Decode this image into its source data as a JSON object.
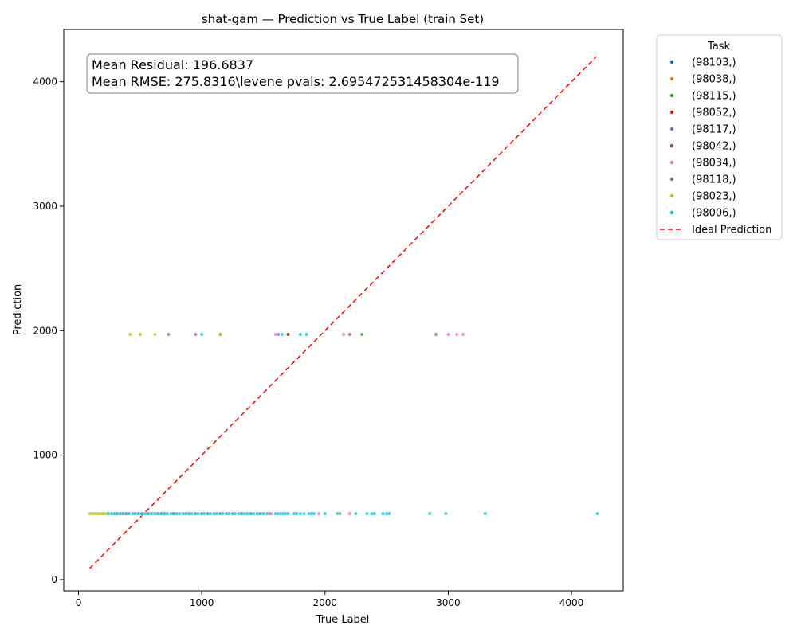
{
  "chart_data": {
    "type": "scatter",
    "title": "shat-gam — Prediction vs True Label (train Set)",
    "xlabel": "True Label",
    "ylabel": "Prediction",
    "xlim": [
      -120,
      4420
    ],
    "ylim": [
      -90,
      4420
    ],
    "xticks": [
      0,
      1000,
      2000,
      3000,
      4000
    ],
    "yticks": [
      0,
      1000,
      2000,
      3000,
      4000
    ],
    "grid": false,
    "legend": {
      "title": "Task",
      "placement": "outside-top-right"
    },
    "annotation": [
      "Mean Residual: 196.6837",
      "Mean RMSE: 275.8316\\levene pvals: 2.695472531458304e-119"
    ],
    "ideal_line": {
      "name": "Ideal Prediction",
      "x": [
        90,
        4200
      ],
      "y": [
        90,
        4200
      ],
      "color": "#ff0000",
      "style": "dashed"
    },
    "series": [
      {
        "name": "(98103,)",
        "color": "#1f77b4",
        "points": [
          [
            250,
            530
          ],
          [
            300,
            530
          ],
          [
            400,
            530
          ],
          [
            520,
            530
          ],
          [
            640,
            530
          ],
          [
            760,
            530
          ],
          [
            900,
            530
          ],
          [
            1050,
            530
          ],
          [
            1200,
            530
          ],
          [
            1330,
            530
          ],
          [
            1450,
            530
          ]
        ]
      },
      {
        "name": "(98038,)",
        "color": "#ff7f0e",
        "points": [
          [
            1150,
            1970
          ],
          [
            200,
            530
          ],
          [
            350,
            530
          ],
          [
            600,
            530
          ],
          [
            850,
            530
          ]
        ]
      },
      {
        "name": "(98115,)",
        "color": "#2ca02c",
        "points": [
          [
            2300,
            1970
          ],
          [
            1700,
            1970
          ],
          [
            450,
            530
          ],
          [
            700,
            530
          ],
          [
            1000,
            530
          ],
          [
            1400,
            530
          ]
        ]
      },
      {
        "name": "(98052,)",
        "color": "#d62728",
        "points": [
          [
            2200,
            1970
          ],
          [
            1700,
            1970
          ],
          [
            380,
            530
          ],
          [
            780,
            530
          ],
          [
            1150,
            530
          ]
        ]
      },
      {
        "name": "(98117,)",
        "color": "#9467bd",
        "points": [
          [
            950,
            1970
          ],
          [
            1620,
            1970
          ],
          [
            480,
            530
          ],
          [
            880,
            530
          ],
          [
            1250,
            530
          ]
        ]
      },
      {
        "name": "(98042,)",
        "color": "#8c564b",
        "points": [
          [
            1150,
            1970
          ],
          [
            1700,
            1970
          ],
          [
            2200,
            1970
          ],
          [
            330,
            530
          ],
          [
            560,
            530
          ],
          [
            950,
            530
          ],
          [
            1560,
            530
          ]
        ]
      },
      {
        "name": "(98034,)",
        "color": "#e377c2",
        "points": [
          [
            1600,
            1970
          ],
          [
            2150,
            1970
          ],
          [
            2200,
            1970
          ],
          [
            3000,
            1970
          ],
          [
            3070,
            1970
          ],
          [
            3120,
            1970
          ],
          [
            1550,
            530
          ],
          [
            1950,
            530
          ],
          [
            2200,
            530
          ]
        ]
      },
      {
        "name": "(98118,)",
        "color": "#7f7f7f",
        "points": [
          [
            730,
            1970
          ],
          [
            2900,
            1970
          ],
          [
            680,
            530
          ],
          [
            1100,
            530
          ],
          [
            1480,
            530
          ],
          [
            2120,
            530
          ]
        ]
      },
      {
        "name": "(98023,)",
        "color": "#bcbd22",
        "points": [
          [
            420,
            1970
          ],
          [
            500,
            1970
          ],
          [
            620,
            1970
          ],
          [
            1150,
            1970
          ],
          [
            90,
            530
          ],
          [
            100,
            530
          ],
          [
            110,
            530
          ],
          [
            120,
            530
          ],
          [
            130,
            530
          ],
          [
            140,
            530
          ],
          [
            150,
            530
          ],
          [
            160,
            530
          ],
          [
            170,
            530
          ],
          [
            180,
            530
          ],
          [
            190,
            530
          ],
          [
            200,
            530
          ],
          [
            215,
            530
          ],
          [
            230,
            530
          ],
          [
            260,
            530
          ],
          [
            320,
            530
          ]
        ]
      },
      {
        "name": "(98006,)",
        "color": "#17becf",
        "points": [
          [
            1000,
            1970
          ],
          [
            1650,
            1970
          ],
          [
            1800,
            1970
          ],
          [
            1850,
            1970
          ],
          [
            240,
            530
          ],
          [
            270,
            530
          ],
          [
            290,
            530
          ],
          [
            310,
            530
          ],
          [
            340,
            530
          ],
          [
            360,
            530
          ],
          [
            390,
            530
          ],
          [
            410,
            530
          ],
          [
            440,
            530
          ],
          [
            460,
            530
          ],
          [
            490,
            530
          ],
          [
            510,
            530
          ],
          [
            540,
            530
          ],
          [
            570,
            530
          ],
          [
            590,
            530
          ],
          [
            620,
            530
          ],
          [
            650,
            530
          ],
          [
            670,
            530
          ],
          [
            700,
            530
          ],
          [
            720,
            530
          ],
          [
            750,
            530
          ],
          [
            770,
            530
          ],
          [
            800,
            530
          ],
          [
            820,
            530
          ],
          [
            850,
            530
          ],
          [
            870,
            530
          ],
          [
            900,
            530
          ],
          [
            920,
            530
          ],
          [
            950,
            530
          ],
          [
            970,
            530
          ],
          [
            1000,
            530
          ],
          [
            1020,
            530
          ],
          [
            1050,
            530
          ],
          [
            1070,
            530
          ],
          [
            1100,
            530
          ],
          [
            1120,
            530
          ],
          [
            1150,
            530
          ],
          [
            1170,
            530
          ],
          [
            1200,
            530
          ],
          [
            1220,
            530
          ],
          [
            1250,
            530
          ],
          [
            1270,
            530
          ],
          [
            1300,
            530
          ],
          [
            1320,
            530
          ],
          [
            1350,
            530
          ],
          [
            1370,
            530
          ],
          [
            1400,
            530
          ],
          [
            1420,
            530
          ],
          [
            1450,
            530
          ],
          [
            1470,
            530
          ],
          [
            1500,
            530
          ],
          [
            1530,
            530
          ],
          [
            1600,
            530
          ],
          [
            1620,
            530
          ],
          [
            1640,
            530
          ],
          [
            1660,
            530
          ],
          [
            1680,
            530
          ],
          [
            1700,
            530
          ],
          [
            1750,
            530
          ],
          [
            1770,
            530
          ],
          [
            1800,
            530
          ],
          [
            1830,
            530
          ],
          [
            1870,
            530
          ],
          [
            1890,
            530
          ],
          [
            1910,
            530
          ],
          [
            2000,
            530
          ],
          [
            2100,
            530
          ],
          [
            2250,
            530
          ],
          [
            2340,
            530
          ],
          [
            2380,
            530
          ],
          [
            2400,
            530
          ],
          [
            2470,
            530
          ],
          [
            2500,
            530
          ],
          [
            2520,
            530
          ],
          [
            2850,
            530
          ],
          [
            2980,
            530
          ],
          [
            3300,
            530
          ],
          [
            4210,
            530
          ]
        ]
      }
    ]
  }
}
